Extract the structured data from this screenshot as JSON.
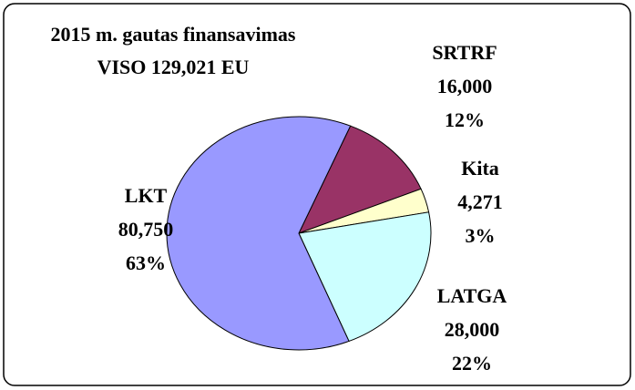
{
  "chart_data": {
    "type": "pie",
    "title": [
      "2015 m. gautas finansavimas",
      "VISO 129,021 EU"
    ],
    "categories": [
      "SRTRF",
      "Kita",
      "LATGA",
      "LKT"
    ],
    "values": [
      16000,
      4271,
      28000,
      80750
    ],
    "value_labels": [
      "16,000",
      "4,271",
      "28,000",
      "80,750"
    ],
    "percent_labels": [
      "12%",
      "3%",
      "22%",
      "63%"
    ],
    "colors": [
      "#993366",
      "#ffffcc",
      "#ccffff",
      "#9999ff"
    ]
  }
}
